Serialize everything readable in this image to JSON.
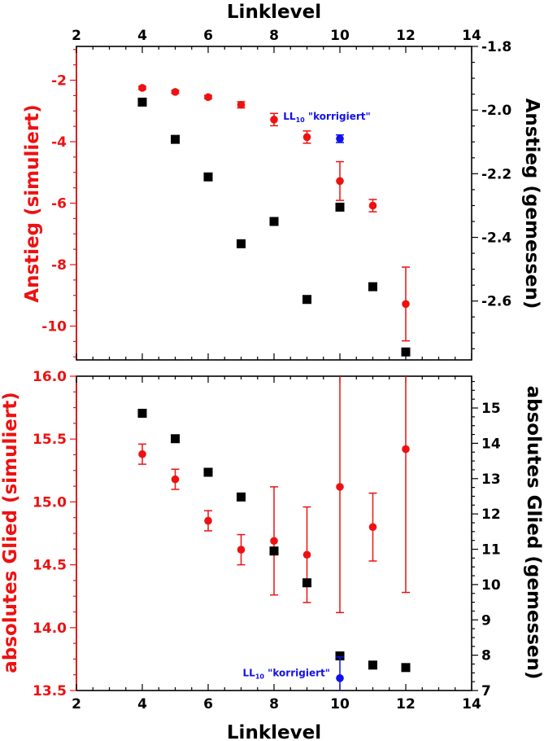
{
  "chart_data": [
    {
      "type": "scatter",
      "xlabel": "Linklevel",
      "xlabel_top": "Linklevel",
      "xlim": [
        2,
        14
      ],
      "x_ticks": [
        2,
        4,
        6,
        8,
        10,
        12,
        14
      ],
      "x_tick_labels": [
        "2",
        "4",
        "6",
        "8",
        "10",
        "12",
        "14"
      ],
      "ylabel_left": "Anstieg (simuliert)",
      "ylabel_right": "Anstieg (gemessen)",
      "ylim_left": [
        -11.1,
        -0.9
      ],
      "ylim_right": [
        -2.785,
        -1.8
      ],
      "y_ticks_left": [
        -2,
        -4,
        -6,
        -8,
        -10
      ],
      "y_tick_labels_left": [
        "-2",
        "-4",
        "-6",
        "-8",
        "-10"
      ],
      "y_ticks_right": [
        -1.8,
        -2.0,
        -2.2,
        -2.4,
        -2.6
      ],
      "y_tick_labels_right": [
        "-1.8",
        "-2.0",
        "-2.2",
        "-2.4",
        "-2.6"
      ],
      "left_color": "#ee1111",
      "right_color": "#000000",
      "series": [
        {
          "axis": "left",
          "marker": "circle",
          "color": "#ee1111",
          "x": [
            4,
            5,
            6,
            7,
            8,
            9,
            10,
            11,
            12
          ],
          "y": [
            -2.25,
            -2.38,
            -2.55,
            -2.8,
            -3.28,
            -3.85,
            -5.28,
            -6.08,
            -9.28
          ],
          "err": [
            0.05,
            0.05,
            0.05,
            0.1,
            0.2,
            0.2,
            0.63,
            0.2,
            1.2
          ]
        },
        {
          "axis": "right",
          "marker": "square",
          "color": "#000000",
          "x": [
            4,
            5,
            6,
            7,
            8,
            9,
            10,
            11,
            12
          ],
          "y": [
            -1.975,
            -2.092,
            -2.21,
            -2.42,
            -2.35,
            -2.595,
            -2.305,
            -2.555,
            -2.76
          ]
        },
        {
          "axis": "right",
          "marker": "circle",
          "color": "#1010ee",
          "x": [
            10
          ],
          "y": [
            -2.09
          ],
          "err": [
            0.012
          ]
        }
      ],
      "annotation": {
        "text": "LL",
        "subscript": "10",
        "suffix": " \"korrigiert\"",
        "color": "#1010ee",
        "x": 10,
        "y_axis": "right",
        "y": -2.03
      }
    },
    {
      "type": "scatter",
      "xlabel": "Linklevel",
      "xlim": [
        2,
        14
      ],
      "x_ticks": [
        2,
        4,
        6,
        8,
        10,
        12,
        14
      ],
      "x_tick_labels": [
        "2",
        "4",
        "6",
        "8",
        "10",
        "12",
        "14"
      ],
      "ylabel_left": "absolutes Glied (simuliert)",
      "ylabel_right": "absolutes Glied (gemessen)",
      "ylim_left": [
        13.5,
        16.0
      ],
      "ylim_right": [
        7,
        15.9
      ],
      "y_ticks_left": [
        13.5,
        14.0,
        14.5,
        15.0,
        15.5,
        16.0
      ],
      "y_tick_labels_left": [
        "13.5",
        "14.0",
        "14.5",
        "15.0",
        "15.5",
        "16.0"
      ],
      "y_ticks_right": [
        7,
        8,
        9,
        10,
        11,
        12,
        13,
        14,
        15
      ],
      "y_tick_labels_right": [
        "7",
        "8",
        "9",
        "10",
        "11",
        "12",
        "13",
        "14",
        "15"
      ],
      "left_color": "#ee1111",
      "right_color": "#000000",
      "series": [
        {
          "axis": "left",
          "marker": "circle",
          "color": "#ee1111",
          "x": [
            4,
            5,
            6,
            7,
            8,
            9,
            10,
            11,
            12
          ],
          "y": [
            15.38,
            15.18,
            14.85,
            14.62,
            14.69,
            14.58,
            15.12,
            14.8,
            15.42
          ],
          "err": [
            0.08,
            0.08,
            0.08,
            0.12,
            0.43,
            0.38,
            1.0,
            0.27,
            1.14
          ]
        },
        {
          "axis": "right",
          "marker": "square",
          "color": "#000000",
          "x": [
            4,
            5,
            6,
            7,
            8,
            9,
            10,
            11,
            12
          ],
          "y": [
            14.85,
            14.13,
            13.18,
            12.48,
            10.95,
            10.05,
            7.98,
            7.72,
            7.65
          ]
        },
        {
          "axis": "right",
          "marker": "circle",
          "color": "#1010ee",
          "x": [
            10
          ],
          "y": [
            7.35
          ],
          "err": [
            0.6
          ]
        }
      ],
      "annotation": {
        "text": "LL",
        "subscript": "10",
        "suffix": " \"korrigiert\"",
        "color": "#1010ee",
        "x": 10,
        "y_axis": "right",
        "y": 7.4,
        "align": "end"
      }
    }
  ]
}
